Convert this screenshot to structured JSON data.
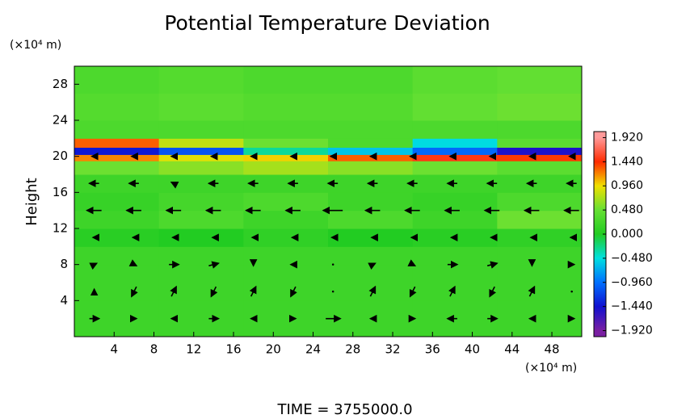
{
  "chart_data": {
    "type": "heatmap",
    "title": "Potential Temperature Deviation",
    "ylabel": "Height",
    "yunit": "(×10⁴ m)",
    "xunit": "(×10⁴ m)",
    "footer": "TIME = 3755000.0",
    "xlim": [
      0,
      51
    ],
    "ylim": [
      0,
      30
    ],
    "xticks": [
      4,
      8,
      12,
      16,
      20,
      24,
      28,
      32,
      36,
      40,
      44,
      48
    ],
    "yticks": [
      4,
      8,
      12,
      16,
      20,
      24,
      28
    ],
    "field": {
      "xbins": [
        0,
        8.5,
        17,
        25.5,
        34,
        42.5,
        51
      ],
      "ybins": [
        0,
        4,
        8,
        10,
        12,
        14,
        16,
        18,
        19.5,
        20.2,
        21,
        22,
        24,
        27,
        30
      ],
      "z": [
        [
          0.2,
          0.2,
          0.2,
          0.2,
          0.2,
          0.2
        ],
        [
          0.2,
          0.2,
          0.2,
          0.2,
          0.2,
          0.2
        ],
        [
          0.2,
          0.2,
          0.2,
          0.2,
          0.2,
          0.2
        ],
        [
          0.05,
          0.0,
          0.1,
          0.0,
          0.05,
          0.1
        ],
        [
          0.2,
          0.3,
          0.2,
          0.3,
          0.2,
          0.5
        ],
        [
          0.15,
          0.25,
          0.3,
          0.2,
          0.15,
          0.3
        ],
        [
          0.2,
          0.2,
          0.2,
          0.2,
          0.2,
          0.2
        ],
        [
          0.5,
          0.6,
          0.7,
          0.6,
          0.5,
          0.4
        ],
        [
          1.2,
          0.9,
          1.0,
          1.3,
          1.5,
          1.4
        ],
        [
          -1.4,
          -1.1,
          -0.3,
          -0.6,
          -1.0,
          -1.5
        ],
        [
          1.3,
          0.8,
          0.5,
          0.3,
          -0.5,
          0.4
        ],
        [
          0.3,
          0.3,
          0.3,
          0.3,
          0.3,
          0.3
        ],
        [
          0.35,
          0.4,
          0.35,
          0.35,
          0.45,
          0.5
        ],
        [
          0.3,
          0.35,
          0.3,
          0.3,
          0.4,
          0.45
        ]
      ]
    },
    "vectors": {
      "x": [
        2,
        6,
        10,
        14,
        18,
        22,
        26,
        30,
        34,
        38,
        42,
        46,
        50
      ],
      "y": [
        2,
        5,
        8,
        11,
        14,
        17,
        20
      ],
      "u": [
        [
          2,
          1,
          -1,
          2,
          -1,
          1,
          3,
          -1,
          1,
          -2,
          2,
          -1,
          1
        ],
        [
          0,
          -1,
          1,
          -1,
          1,
          -1,
          0,
          1,
          -1,
          1,
          -1,
          1,
          0
        ],
        [
          1,
          1,
          2,
          2,
          0,
          -1,
          0,
          1,
          1,
          2,
          2,
          0,
          1
        ],
        [
          -0.5,
          -0.5,
          -0.5,
          -0.5,
          -0.5,
          -0.5,
          -0.5,
          -0.5,
          -0.5,
          -0.5,
          -0.5,
          -0.5,
          -0.5
        ],
        [
          -3,
          -3,
          -3,
          -3,
          -3,
          -3,
          -4,
          -3,
          -3,
          -3,
          -3,
          -3,
          -3
        ],
        [
          -2,
          -2,
          -1,
          -2,
          -2,
          -2,
          -2,
          -2,
          -2,
          -2,
          -2,
          -2,
          -2
        ],
        [
          -1,
          -1,
          -1,
          -1,
          -1,
          -1,
          -1,
          -1,
          -1,
          -1,
          -1,
          -1,
          -1
        ]
      ],
      "v": [
        [
          0,
          0,
          0,
          0,
          0,
          0,
          0,
          0,
          0,
          0,
          0,
          0,
          0
        ],
        [
          1,
          -2,
          2,
          -2,
          2,
          -2,
          0,
          2,
          -2,
          2,
          -2,
          2,
          0
        ],
        [
          0.5,
          -0.5,
          0,
          0.5,
          -0.5,
          0,
          0,
          0.5,
          -0.5,
          0,
          0.5,
          -0.5,
          0
        ],
        [
          0,
          0,
          0,
          0,
          0,
          0,
          0,
          0,
          0,
          0,
          0,
          0,
          0
        ],
        [
          0,
          0,
          0,
          0,
          0,
          0,
          0,
          0,
          0,
          0,
          0,
          0,
          0
        ],
        [
          0,
          0,
          0.5,
          0,
          0,
          0,
          0,
          0,
          0,
          0,
          0,
          0,
          0
        ],
        [
          0,
          0,
          0,
          0,
          0,
          0,
          0,
          0,
          0,
          0,
          0,
          0,
          0
        ]
      ],
      "color": "#000000"
    },
    "clim": [
      -2.04,
      2.04
    ],
    "cticks": [
      {
        "value": 1.92,
        "label": "1.920"
      },
      {
        "value": 1.44,
        "label": "1.440"
      },
      {
        "value": 0.96,
        "label": "0.960"
      },
      {
        "value": 0.48,
        "label": "0.480"
      },
      {
        "value": 0,
        "label": "0.000"
      },
      {
        "value": -0.48,
        "label": "−0.480"
      },
      {
        "value": -0.96,
        "label": "−0.960"
      },
      {
        "value": -1.44,
        "label": "−1.440"
      },
      {
        "value": -1.92,
        "label": "−1.920"
      }
    ],
    "colormap": [
      "#ff9a9a",
      "#ff2a00",
      "#f0e000",
      "#66e033",
      "#22cc22",
      "#00e0e0",
      "#0070ff",
      "#1010d0",
      "#7a1fa2"
    ]
  }
}
